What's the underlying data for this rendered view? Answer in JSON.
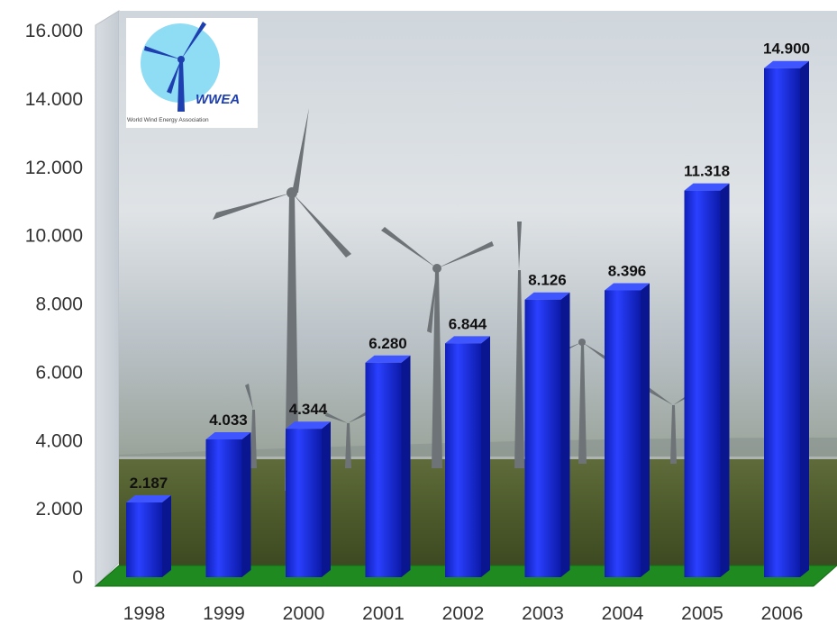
{
  "chart_data": {
    "type": "bar",
    "categories": [
      "1998",
      "1999",
      "2000",
      "2001",
      "2002",
      "2003",
      "2004",
      "2005",
      "2006"
    ],
    "values": [
      2187,
      4033,
      4344,
      6280,
      6844,
      8126,
      8396,
      11318,
      14900
    ],
    "value_labels": [
      "2.187",
      "4.033",
      "4.344",
      "6.280",
      "6.844",
      "8.126",
      "8.396",
      "11.318",
      "14.900"
    ],
    "y_ticks": [
      0,
      2000,
      4000,
      6000,
      8000,
      10000,
      12000,
      14000,
      16000
    ],
    "y_tick_labels": [
      "0",
      "2.000",
      "4.000",
      "6.000",
      "8.000",
      "10.000",
      "12.000",
      "14.000",
      "16.000"
    ],
    "ylim": [
      0,
      16000
    ],
    "title": "",
    "xlabel": "",
    "ylabel": "",
    "grid": false,
    "bar_color": "#1f33e6",
    "floor_color": "#1f8a1f"
  },
  "logo": {
    "name": "WWEA",
    "subtitle": "World Wind Energy Association"
  }
}
